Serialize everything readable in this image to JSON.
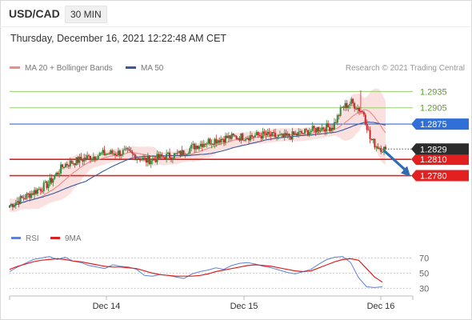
{
  "header": {
    "symbol": "USD/CAD",
    "timeframe": "30 MIN",
    "timestamp": "Thursday, December 16, 2021 12:22:48 AM CET"
  },
  "legend": {
    "ma20": "MA 20 + Bollinger Bands",
    "ma50": "MA 50",
    "rsi": "RSI",
    "rsi_ma": "9MA"
  },
  "credit": "Research © 2021 Trading Central",
  "colors": {
    "ma20": "#ef8a86",
    "ma50": "#36589c",
    "bollinger_fill": "#fadada",
    "bull": "#2e8b3a",
    "bear": "#c62828",
    "resistance": "#9acd6e",
    "support": "#e32020",
    "pivot": "#2f6fd6",
    "last_price_tag": "#2b2b2b",
    "forecast_arrow": "#2f6db3",
    "rsi_line": "#5e82d4",
    "rsi_ma_line": "#dd1f1f"
  },
  "chart_data": [
    {
      "type": "candlestick",
      "title": "USD/CAD",
      "x_tick_labels": [
        "Dec 14",
        "Dec 15",
        "Dec 16"
      ],
      "y_range": [
        1.2685,
        1.2965
      ],
      "levels": [
        {
          "value": 1.2935,
          "label": "1.2935",
          "kind": "resistance"
        },
        {
          "value": 1.2905,
          "label": "1.2905",
          "kind": "resistance"
        },
        {
          "value": 1.2875,
          "label": "1.2875",
          "kind": "pivot"
        },
        {
          "value": 1.2829,
          "label": "1.2829",
          "kind": "last_price"
        },
        {
          "value": 1.281,
          "label": "1.2810",
          "kind": "support"
        },
        {
          "value": 1.278,
          "label": "1.2780",
          "kind": "support"
        }
      ],
      "last_price": 1.2829,
      "forecast": {
        "direction": "down",
        "from": 1.2829,
        "to": 1.278
      },
      "ohlc_sample": {
        "first_open": 1.2725,
        "low": 1.2722,
        "high": 1.2937,
        "last_close": 1.2829
      },
      "series": [
        {
          "name": "MA 20 + Bollinger Bands"
        },
        {
          "name": "MA 50"
        }
      ]
    },
    {
      "type": "line",
      "title": "RSI",
      "y_tick_labels": [
        "70",
        "50",
        "30"
      ],
      "ylim": [
        23,
        80
      ],
      "levels": [
        70,
        50,
        30
      ],
      "series": [
        {
          "name": "RSI",
          "values": [
            52,
            58,
            63,
            68,
            70,
            72,
            68,
            71,
            66,
            64,
            60,
            58,
            56,
            61,
            59,
            58,
            55,
            47,
            46,
            48,
            47,
            45,
            43,
            49,
            52,
            54,
            57,
            55,
            60,
            63,
            64,
            62,
            59,
            57,
            54,
            51,
            49,
            52,
            55,
            62,
            68,
            71,
            72,
            64,
            44,
            32,
            31,
            32
          ]
        },
        {
          "name": "9MA",
          "values": [
            55,
            59,
            62,
            65,
            67,
            68,
            69,
            68,
            66,
            65,
            63,
            61,
            59,
            58,
            58,
            57,
            56,
            53,
            50,
            48,
            47,
            46,
            46,
            46,
            47,
            49,
            52,
            54,
            56,
            58,
            60,
            61,
            60,
            59,
            57,
            55,
            53,
            52,
            53,
            57,
            61,
            65,
            68,
            69,
            67,
            56,
            45,
            38
          ]
        }
      ]
    }
  ]
}
